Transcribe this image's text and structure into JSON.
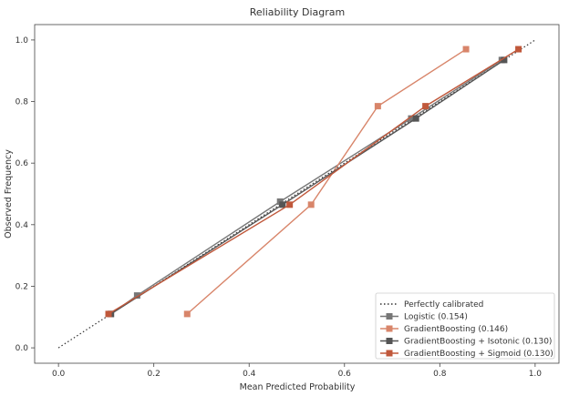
{
  "chart_data": {
    "type": "line",
    "title": "Reliability Diagram",
    "xlabel": "Mean Predicted Probability",
    "ylabel": "Observed Frequency",
    "xlim": [
      -0.05,
      1.05
    ],
    "ylim": [
      -0.05,
      1.05
    ],
    "xticks": [
      "0.0",
      "0.2",
      "0.4",
      "0.6",
      "0.8",
      "1.0"
    ],
    "yticks": [
      "0.0",
      "0.2",
      "0.4",
      "0.6",
      "0.8",
      "1.0"
    ],
    "grid": false,
    "legend_position": "lower-right",
    "series": [
      {
        "name": "Perfectly calibrated",
        "style": "dotted",
        "color": "#333333",
        "marker": "none",
        "x": [
          0.0,
          1.0
        ],
        "y": [
          0.0,
          1.0
        ]
      },
      {
        "name": "Logistic (0.154)",
        "style": "solid",
        "color": "#777777",
        "marker": "square",
        "x": [
          0.11,
          0.165,
          0.465,
          0.74,
          0.93
        ],
        "y": [
          0.11,
          0.17,
          0.475,
          0.745,
          0.935
        ]
      },
      {
        "name": "GradientBoosting (0.146)",
        "style": "solid",
        "color": "#d8856a",
        "marker": "square",
        "x": [
          0.27,
          0.53,
          0.67,
          0.855
        ],
        "y": [
          0.11,
          0.465,
          0.785,
          0.97
        ]
      },
      {
        "name": "GradientBoosting + Isotonic (0.130)",
        "style": "solid",
        "color": "#555555",
        "marker": "square",
        "x": [
          0.11,
          0.47,
          0.75,
          0.935
        ],
        "y": [
          0.11,
          0.465,
          0.745,
          0.935
        ]
      },
      {
        "name": "GradientBoosting + Sigmoid (0.130)",
        "style": "solid",
        "color": "#c0583b",
        "marker": "square",
        "x": [
          0.105,
          0.485,
          0.77,
          0.965
        ],
        "y": [
          0.11,
          0.465,
          0.785,
          0.97
        ]
      }
    ]
  }
}
